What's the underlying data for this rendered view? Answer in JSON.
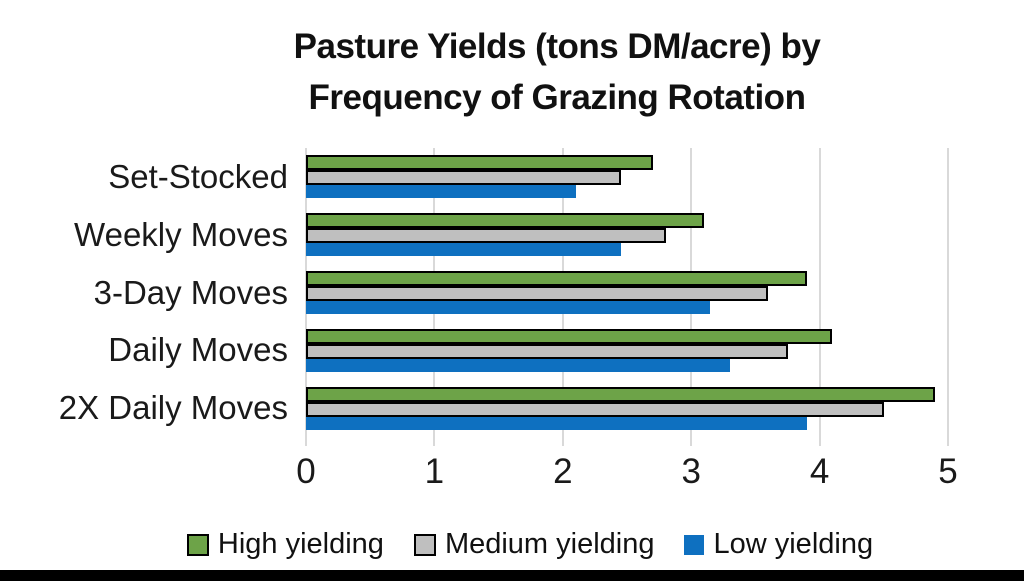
{
  "chart_data": {
    "type": "bar",
    "orientation": "horizontal",
    "title": "Pasture Yields (tons DM/acre) by Frequency of Grazing Rotation",
    "title_lines": [
      "Pasture Yields (tons DM/acre) by",
      "Frequency of Grazing Rotation"
    ],
    "categories": [
      "Set-Stocked",
      "Weekly Moves",
      "3-Day Moves",
      "Daily Moves",
      "2X Daily Moves"
    ],
    "series": [
      {
        "name": "High yielding",
        "color": "#6da348",
        "outline": "#000000",
        "values": [
          2.7,
          3.1,
          3.9,
          4.1,
          4.9
        ]
      },
      {
        "name": "Medium yielding",
        "color": "#bfbfbf",
        "outline": "#000000",
        "values": [
          2.45,
          2.8,
          3.6,
          3.75,
          4.5
        ]
      },
      {
        "name": "Low yielding",
        "color": "#0e70c0",
        "outline": null,
        "values": [
          2.1,
          2.45,
          3.15,
          3.3,
          3.9
        ]
      }
    ],
    "xlabel": "",
    "ylabel": "",
    "x_ticks": [
      0,
      1,
      2,
      3,
      4,
      5
    ],
    "xlim": [
      0,
      5
    ],
    "grid": true,
    "gridline_color": "#d9d9d9",
    "legend_position": "bottom"
  }
}
